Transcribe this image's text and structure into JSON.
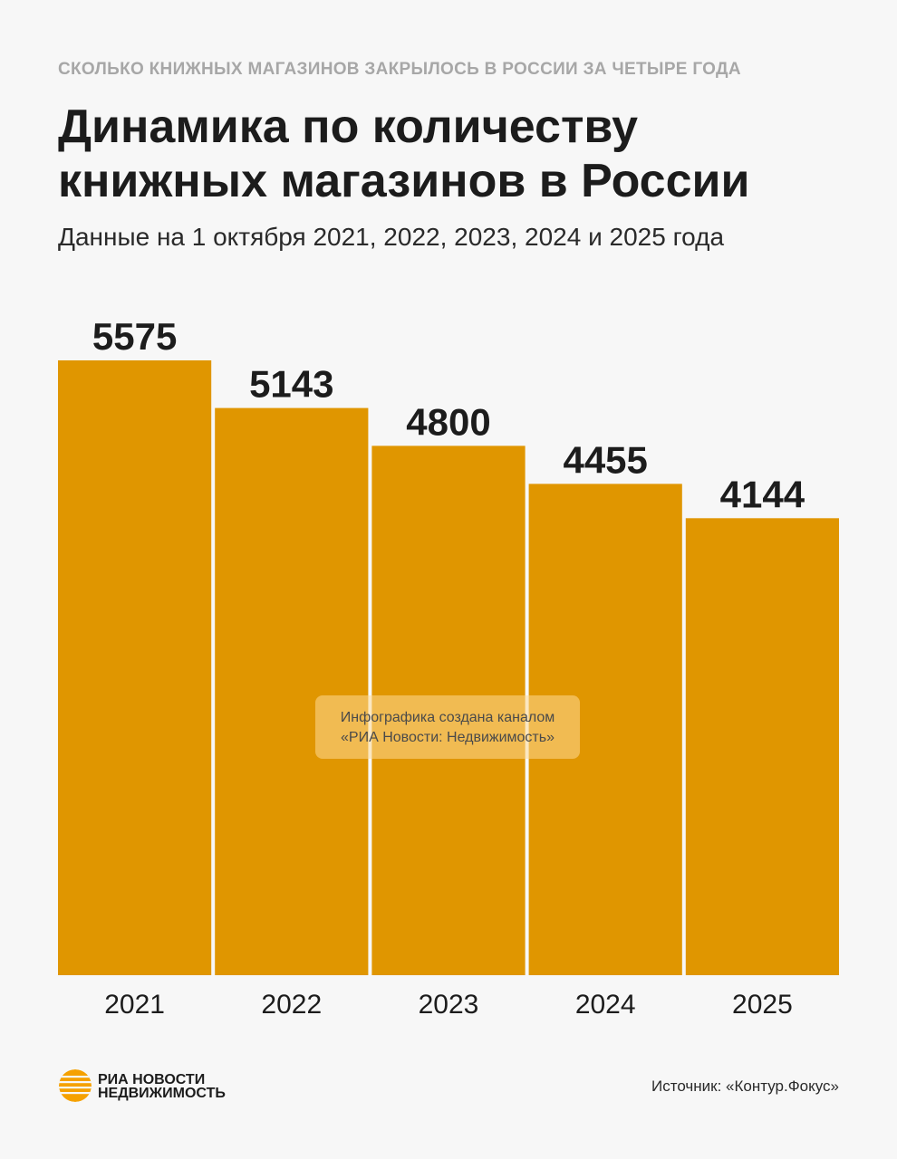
{
  "header": {
    "kicker": "СКОЛЬКО КНИЖНЫХ МАГАЗИНОВ ЗАКРЫЛОСЬ В РОССИИ ЗА ЧЕТЫРЕ ГОДА",
    "title_line1": "Динамика по количеству",
    "title_line2": "книжных магазинов в России",
    "subtitle": "Данные на 1 октября 2021, 2022, 2023, 2024 и 2025 года"
  },
  "chart_data": {
    "type": "bar",
    "categories": [
      "2021",
      "2022",
      "2023",
      "2024",
      "2025"
    ],
    "values": [
      5575,
      5143,
      4800,
      4455,
      4144
    ],
    "data_labels": [
      "5575",
      "5143",
      "4800",
      "4455",
      "4144"
    ],
    "ylim": [
      0,
      5575
    ],
    "bar_color": "#e09600",
    "grid": false,
    "legend": "none"
  },
  "watermark": {
    "line1": "Инфографика создана каналом",
    "line2": "«РИА Новости: Недвижимость»"
  },
  "footer": {
    "logo_line1": "РИА НОВОСТИ",
    "logo_line2": "НЕДВИЖИМОСТЬ",
    "logo_icon": "ria-sun-logo-icon",
    "logo_color": "#f5a100",
    "source": "Источник: «Контур.Фокус»"
  }
}
